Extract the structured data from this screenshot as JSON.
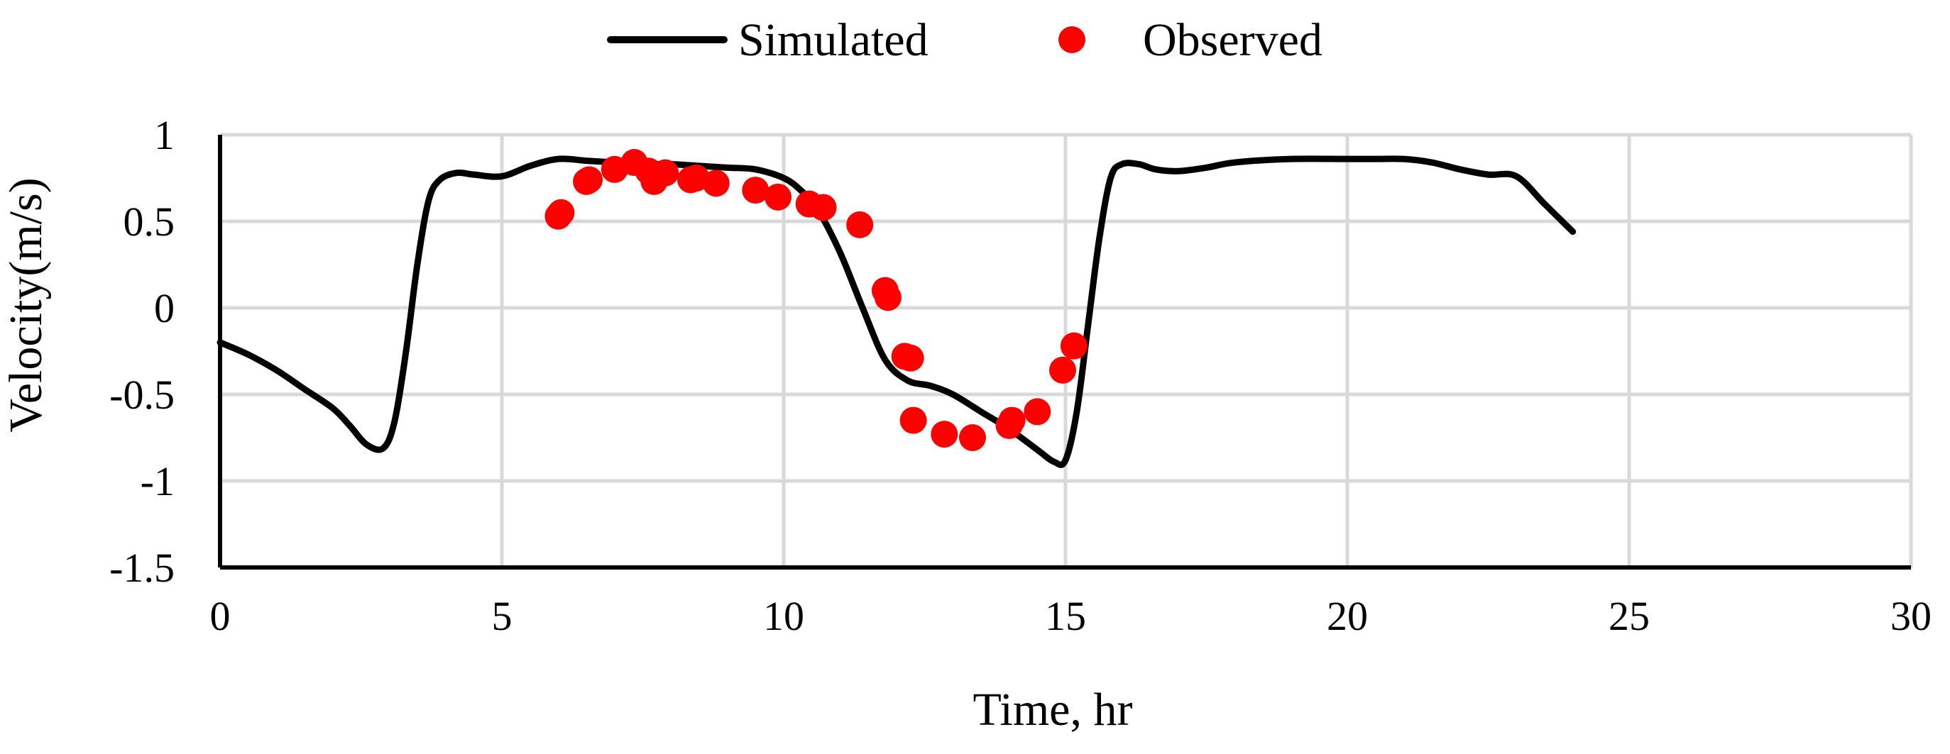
{
  "chart_data": {
    "type": "line",
    "xlabel": "Time, hr",
    "ylabel": "Velocity(m/s)",
    "xlim": [
      0,
      30
    ],
    "ylim": [
      -1.5,
      1
    ],
    "x_ticks": [
      0,
      5,
      10,
      15,
      20,
      25,
      30
    ],
    "y_ticks": [
      1,
      0.5,
      0,
      -0.5,
      -1,
      -1.5
    ],
    "x_tick_labels": [
      "0",
      "5",
      "10",
      "15",
      "20",
      "25",
      "30"
    ],
    "y_tick_labels": [
      "1",
      "0.5",
      "0",
      "-0.5",
      "-1",
      "-1.5"
    ],
    "grid": true,
    "legend_position": "top-center",
    "series": [
      {
        "name": "Simulated",
        "kind": "line",
        "color": "#000000",
        "x": [
          0,
          0.5,
          1,
          1.5,
          2,
          2.3,
          2.6,
          2.9,
          3.1,
          3.3,
          3.5,
          3.7,
          3.9,
          4.2,
          4.5,
          5,
          5.5,
          6,
          6.5,
          7,
          7.5,
          8,
          8.5,
          9,
          9.5,
          10,
          10.3,
          10.6,
          11,
          11.4,
          11.8,
          12.2,
          12.6,
          13,
          13.5,
          14,
          14.5,
          14.8,
          15,
          15.2,
          15.4,
          15.6,
          15.8,
          16,
          16.3,
          16.6,
          17,
          17.5,
          18,
          19,
          20,
          20.5,
          21,
          21.5,
          22,
          22.5,
          23,
          23.5,
          24
        ],
        "values": [
          -0.2,
          -0.27,
          -0.36,
          -0.47,
          -0.58,
          -0.68,
          -0.79,
          -0.81,
          -0.65,
          -0.25,
          0.25,
          0.62,
          0.74,
          0.78,
          0.77,
          0.76,
          0.82,
          0.86,
          0.85,
          0.84,
          0.83,
          0.83,
          0.82,
          0.81,
          0.8,
          0.75,
          0.68,
          0.57,
          0.32,
          0.0,
          -0.3,
          -0.42,
          -0.45,
          -0.5,
          -0.6,
          -0.7,
          -0.82,
          -0.89,
          -0.88,
          -0.6,
          -0.1,
          0.4,
          0.75,
          0.83,
          0.83,
          0.8,
          0.79,
          0.81,
          0.84,
          0.86,
          0.86,
          0.86,
          0.86,
          0.84,
          0.8,
          0.77,
          0.76,
          0.6,
          0.44
        ]
      },
      {
        "name": "Observed",
        "kind": "scatter",
        "color": "#ff0000",
        "x": [
          6.0,
          6.05,
          6.5,
          6.55,
          7.0,
          7.35,
          7.6,
          7.7,
          7.9,
          8.35,
          8.45,
          8.8,
          9.5,
          9.9,
          10.45,
          10.7,
          11.35,
          11.8,
          11.85,
          12.15,
          12.25,
          12.3,
          12.85,
          13.35,
          14.0,
          14.05,
          14.5,
          14.95,
          15.15
        ],
        "values": [
          0.53,
          0.55,
          0.73,
          0.74,
          0.8,
          0.84,
          0.79,
          0.73,
          0.78,
          0.74,
          0.75,
          0.72,
          0.68,
          0.64,
          0.6,
          0.58,
          0.48,
          0.1,
          0.06,
          -0.28,
          -0.29,
          -0.65,
          -0.73,
          -0.75,
          -0.68,
          -0.65,
          -0.6,
          -0.36,
          -0.22
        ]
      }
    ]
  }
}
